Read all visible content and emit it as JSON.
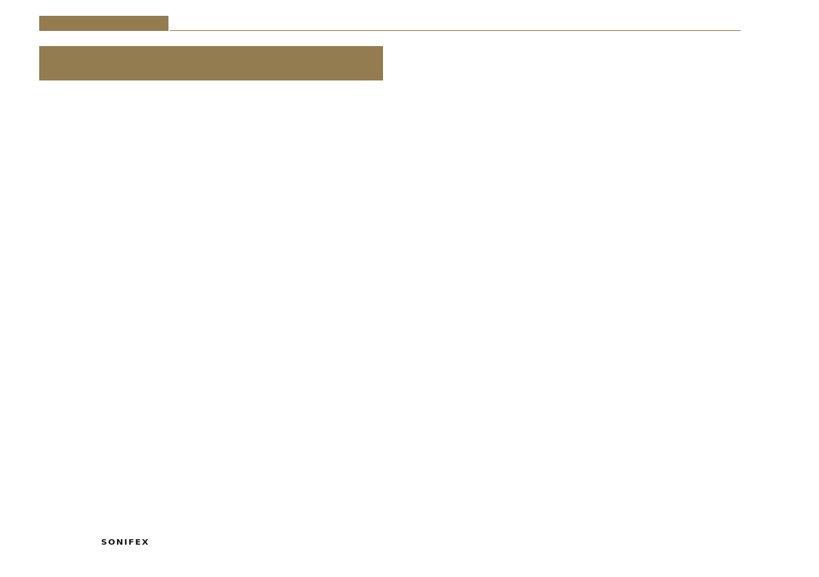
{
  "page": {
    "type": "manual-page",
    "background_color": "#ffffff"
  },
  "header": {
    "tab_color": "#937C50",
    "rule_color": "#8C7A45"
  },
  "title_banner": {
    "color": "#937C50"
  },
  "footer": {
    "brand_logo_text": "SONIFEX",
    "logo_color": "#121212"
  }
}
